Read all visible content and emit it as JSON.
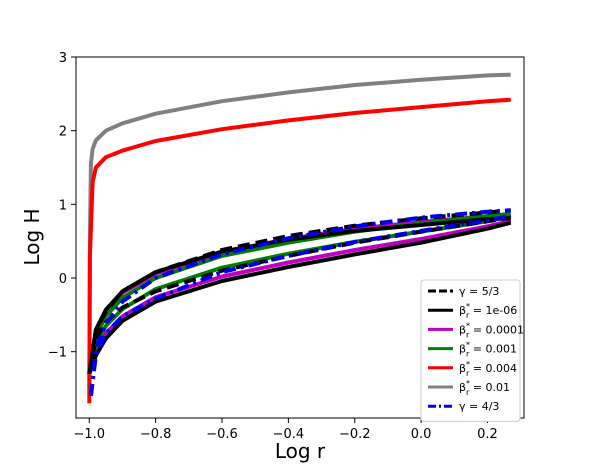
{
  "chart_data": {
    "type": "line",
    "xlabel": "Log r",
    "ylabel": "Log H",
    "xlim": [
      -1.04,
      0.31
    ],
    "ylim": [
      -1.9,
      3.0
    ],
    "xticks": [
      -1.0,
      -0.8,
      -0.6,
      -0.4,
      -0.2,
      0.0,
      0.2
    ],
    "xtick_labels": [
      "−1.0",
      "−0.8",
      "−0.6",
      "−0.4",
      "−0.2",
      "0.0",
      "0.2"
    ],
    "yticks": [
      -1,
      0,
      1,
      2,
      3
    ],
    "ytick_labels": [
      "−1",
      "0",
      "1",
      "2",
      "3"
    ],
    "grid": false,
    "legend_position": "lower-right",
    "series": [
      {
        "name": "γ = 5/3",
        "name_parts": {
          "pre": "γ = 5/3",
          "sup": "",
          "post": ""
        },
        "color": "#000000",
        "style": "dashed",
        "x_branch_a": [
          -1.0,
          -0.98,
          -0.95,
          -0.9,
          -0.8,
          -0.6,
          -0.4,
          -0.2,
          0.0,
          0.2,
          0.27
        ],
        "y_branch_a": [
          -1.3,
          -0.72,
          -0.45,
          -0.18,
          0.08,
          0.38,
          0.57,
          0.71,
          0.81,
          0.89,
          0.92
        ],
        "x_branch_b": [
          -1.0,
          -0.98,
          -0.95,
          -0.9,
          -0.8,
          -0.6,
          -0.4,
          -0.2,
          0.0,
          0.2,
          0.27
        ],
        "y_branch_b": [
          -1.3,
          -0.82,
          -0.6,
          -0.4,
          -0.18,
          0.1,
          0.3,
          0.48,
          0.63,
          0.77,
          0.82
        ]
      },
      {
        "name": "βʳₐ = 1e-06",
        "name_parts": {
          "pre": "β",
          "sup": "*",
          "post": " = 1e-06"
        },
        "color": "#000000",
        "style": "solid",
        "x_branch_a": [
          -1.0,
          -0.98,
          -0.95,
          -0.9,
          -0.8,
          -0.6,
          -0.4,
          -0.2,
          0.0,
          0.2,
          0.27
        ],
        "y_branch_a": [
          -1.3,
          -0.7,
          -0.43,
          -0.18,
          0.08,
          0.36,
          0.52,
          0.64,
          0.72,
          0.8,
          0.81
        ],
        "x_branch_b": [
          -1.0,
          -0.98,
          -0.95,
          -0.9,
          -0.8,
          -0.6,
          -0.4,
          -0.2,
          0.0,
          0.2,
          0.27
        ],
        "y_branch_b": [
          -1.3,
          -1.05,
          -0.82,
          -0.58,
          -0.32,
          -0.04,
          0.15,
          0.32,
          0.48,
          0.67,
          0.75
        ]
      },
      {
        "name": "β = 0.0001",
        "name_parts": {
          "pre": "β",
          "sup": "*",
          "post": " = 0.0001"
        },
        "color": "#c000c0",
        "style": "solid",
        "x_branch_a": [
          -1.0,
          -0.98,
          -0.95,
          -0.9,
          -0.8,
          -0.6,
          -0.4,
          -0.2,
          0.0,
          0.2,
          0.27
        ],
        "y_branch_a": [
          -1.3,
          -0.72,
          -0.46,
          -0.2,
          0.06,
          0.35,
          0.53,
          0.67,
          0.76,
          0.84,
          0.86
        ],
        "x_branch_b": [
          -1.0,
          -0.98,
          -0.95,
          -0.9,
          -0.8,
          -0.6,
          -0.4,
          -0.2,
          0.0,
          0.2,
          0.27
        ],
        "y_branch_b": [
          -1.3,
          -0.97,
          -0.75,
          -0.52,
          -0.26,
          0.02,
          0.21,
          0.38,
          0.53,
          0.7,
          0.78
        ]
      },
      {
        "name": "β = 0.001",
        "name_parts": {
          "pre": "β",
          "sup": "*",
          "post": " = 0.001"
        },
        "color": "#008000",
        "style": "solid",
        "x_branch_a": [
          -1.0,
          -0.98,
          -0.95,
          -0.9,
          -0.8,
          -0.6,
          -0.4,
          -0.2,
          0.0,
          0.2,
          0.27
        ],
        "y_branch_a": [
          -1.3,
          -0.78,
          -0.52,
          -0.27,
          0.0,
          0.3,
          0.48,
          0.63,
          0.74,
          0.84,
          0.87
        ],
        "x_branch_b": [
          -1.0,
          -0.98,
          -0.95,
          -0.9,
          -0.8,
          -0.6,
          -0.4,
          -0.2,
          0.0,
          0.2,
          0.27
        ],
        "y_branch_b": [
          -1.3,
          -0.88,
          -0.65,
          -0.42,
          -0.15,
          0.14,
          0.33,
          0.49,
          0.63,
          0.77,
          0.84
        ]
      },
      {
        "name": "β = 0.004",
        "name_parts": {
          "pre": "β",
          "sup": "*",
          "post": " = 0.004"
        },
        "color": "#ff0000",
        "style": "solid",
        "x": [
          -1.0,
          -0.998,
          -0.99,
          -0.98,
          -0.95,
          -0.9,
          -0.8,
          -0.6,
          -0.4,
          -0.2,
          0.0,
          0.2,
          0.27
        ],
        "y": [
          -1.7,
          0.3,
          1.3,
          1.5,
          1.64,
          1.73,
          1.86,
          2.02,
          2.14,
          2.24,
          2.32,
          2.4,
          2.42
        ]
      },
      {
        "name": "β = 0.01",
        "name_parts": {
          "pre": "β",
          "sup": "*",
          "post": " = 0.01"
        },
        "color": "#808080",
        "style": "solid",
        "x": [
          -1.0,
          -0.998,
          -0.995,
          -0.99,
          -0.98,
          -0.95,
          -0.9,
          -0.8,
          -0.6,
          -0.4,
          -0.2,
          0.0,
          0.2,
          0.27
        ],
        "y": [
          -1.5,
          0.5,
          1.55,
          1.75,
          1.87,
          2.0,
          2.1,
          2.23,
          2.4,
          2.52,
          2.62,
          2.69,
          2.75,
          2.76
        ]
      },
      {
        "name": "γ = 4/3",
        "name_parts": {
          "pre": "γ = 4/3",
          "sup": "",
          "post": ""
        },
        "color": "#0000ee",
        "style": "dashdot",
        "x_branch_a": [
          -0.995,
          -0.98,
          -0.95,
          -0.9,
          -0.8,
          -0.6,
          -0.4,
          -0.2,
          0.0,
          0.2,
          0.27
        ],
        "y_branch_a": [
          -1.6,
          -0.95,
          -0.62,
          -0.32,
          0.0,
          0.32,
          0.54,
          0.7,
          0.82,
          0.9,
          0.92
        ],
        "x_branch_b": [
          -0.995,
          -0.98,
          -0.95,
          -0.9,
          -0.8,
          -0.6,
          -0.4,
          -0.2,
          0.0,
          0.2,
          0.27
        ],
        "y_branch_b": [
          -1.6,
          -1.05,
          -0.75,
          -0.52,
          -0.28,
          0.08,
          0.3,
          0.49,
          0.64,
          0.78,
          0.85
        ]
      }
    ]
  }
}
